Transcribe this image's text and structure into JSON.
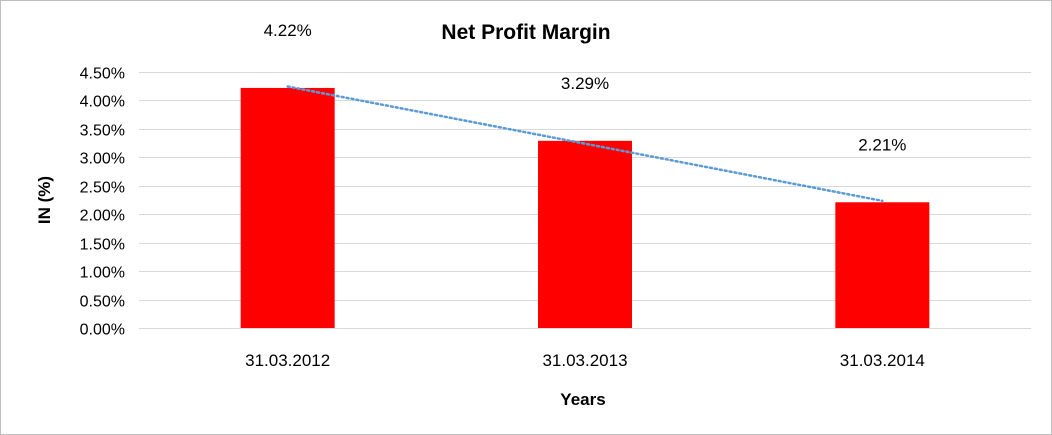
{
  "chart_data": {
    "type": "bar",
    "title": "Net Profit Margin",
    "xlabel": "Years",
    "ylabel": "IN (%)",
    "categories": [
      "31.03.2012",
      "31.03.2013",
      "31.03.2014"
    ],
    "values": [
      4.22,
      3.29,
      2.21
    ],
    "data_labels": [
      "4.22%",
      "3.29%",
      "2.21%"
    ],
    "ylim": [
      0,
      4.5
    ],
    "yticks": [
      0,
      0.5,
      1.0,
      1.5,
      2.0,
      2.5,
      3.0,
      3.5,
      4.0,
      4.5
    ],
    "ytick_labels": [
      "0.00%",
      "0.50%",
      "1.00%",
      "1.50%",
      "2.00%",
      "2.50%",
      "3.00%",
      "3.50%",
      "4.00%",
      "4.50%"
    ],
    "grid": true,
    "trendline": "linear",
    "bar_color": "#ff0000",
    "trendline_color": "#5b9bd5",
    "grid_color": "#d9d9d9"
  }
}
